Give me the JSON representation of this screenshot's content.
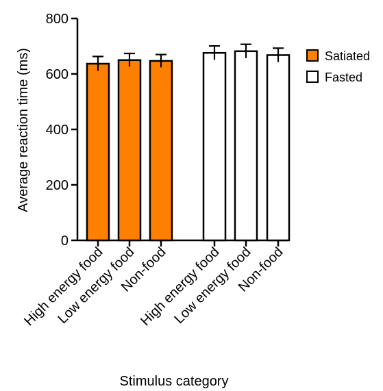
{
  "chart_data": {
    "type": "bar",
    "title": "",
    "xlabel": "Stimulus category",
    "ylabel": "Average reaction time (ms)",
    "ylim": [
      0,
      800
    ],
    "yticks": [
      0,
      200,
      400,
      600,
      800
    ],
    "grid": false,
    "legend_position": "right",
    "groups": [
      {
        "name": "Satiated",
        "color": "#ff8000",
        "categories": [
          "High energy food",
          "Low energy food",
          "Non-food"
        ],
        "values": [
          637,
          650,
          647
        ],
        "errors": [
          26,
          24,
          23
        ]
      },
      {
        "name": "Fasted",
        "color": "#ffffff",
        "categories": [
          "High energy food",
          "Low energy food",
          "Non-food"
        ],
        "values": [
          676,
          682,
          668
        ],
        "errors": [
          25,
          25,
          25
        ]
      }
    ],
    "legend": [
      {
        "label": "Satiated",
        "color": "#ff8000"
      },
      {
        "label": "Fasted",
        "color": "#ffffff"
      }
    ]
  }
}
